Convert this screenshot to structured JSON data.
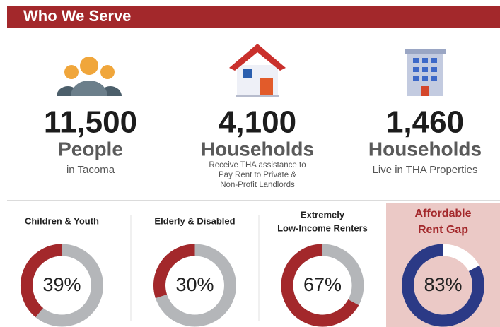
{
  "header": {
    "title": "Who We Serve"
  },
  "stats": [
    {
      "number": "11,500",
      "unit": "People",
      "description": [
        "in Tacoma"
      ]
    },
    {
      "number": "4,100",
      "unit": "Households",
      "description": [
        "Receive THA assistance to",
        "Pay Rent to Private &",
        "Non-Profit Landlords"
      ]
    },
    {
      "number": "1,460",
      "unit": "Households",
      "description": [
        "Live in THA Properties"
      ]
    }
  ],
  "donuts": [
    {
      "label": [
        "Children & Youth"
      ],
      "value": 39,
      "value_label": "39%",
      "color": "#a3282b",
      "rest_color": "#b4b6b9"
    },
    {
      "label": [
        "Elderly & Disabled"
      ],
      "value": 30,
      "value_label": "30%",
      "color": "#a3282b",
      "rest_color": "#b4b6b9"
    },
    {
      "label": [
        "Extremely",
        "Low-Income Renters"
      ],
      "value": 67,
      "value_label": "67%",
      "color": "#a3282b",
      "rest_color": "#b4b6b9"
    },
    {
      "label": [
        "Affordable",
        "Rent Gap"
      ],
      "value": 83,
      "value_label": "83%",
      "color": "#2b3a86",
      "rest_color": "#ffffff",
      "highlight": true
    }
  ]
}
